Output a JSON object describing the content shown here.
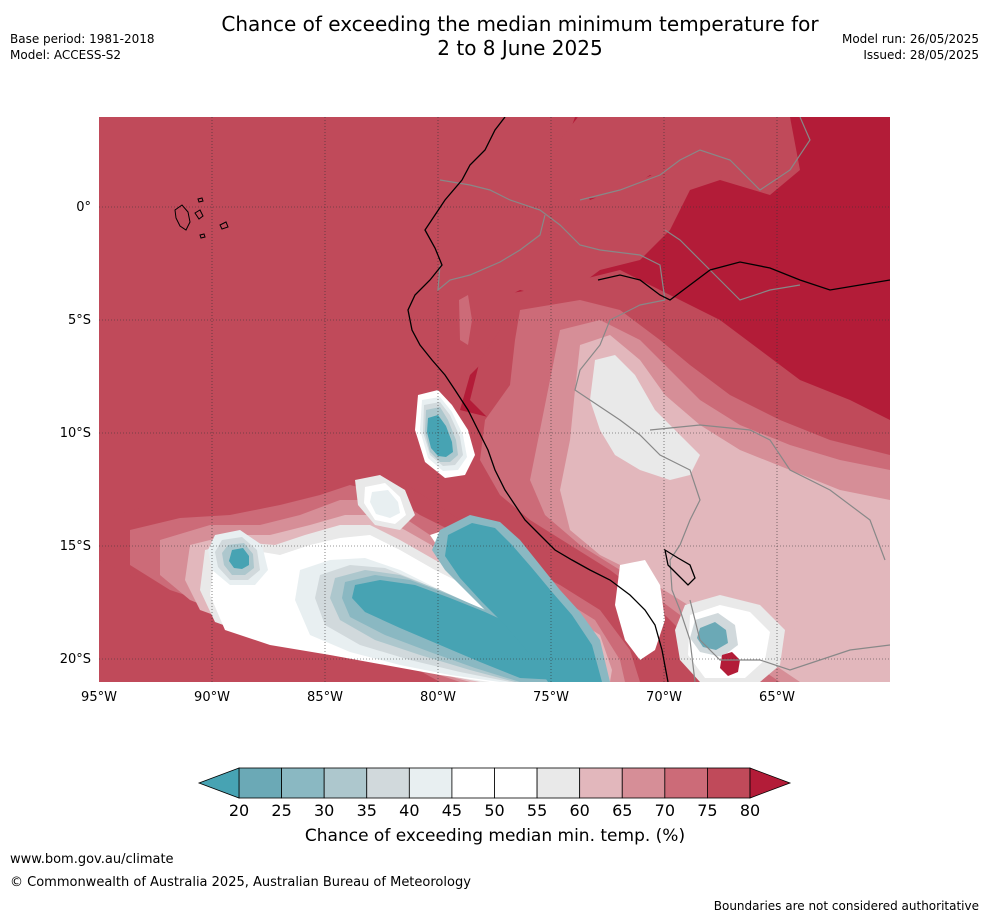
{
  "header": {
    "title_line1": "Chance of exceeding the median minimum temperature for",
    "title_line2": "2 to 8 June 2025",
    "base_period": "Base period: 1981-2018",
    "model": "Model: ACCESS-S2",
    "model_run": "Model run: 26/05/2025",
    "issued": "Issued: 28/05/2025"
  },
  "map": {
    "lon_range": [
      -95,
      -60
    ],
    "lat_range": [
      -21,
      4
    ],
    "lon_ticks": [
      "95°W",
      "90°W",
      "85°W",
      "80°W",
      "75°W",
      "70°W",
      "65°W"
    ],
    "lat_ticks": [
      "0°",
      "5°S",
      "10°S",
      "15°S",
      "20°S"
    ],
    "colors": {
      "p80": "#b31c38",
      "p75": "#c04a5a",
      "p70": "#cc6b78",
      "p65": "#d68e97",
      "p60": "#e2b7bc",
      "p55": "#e9e9e9",
      "p50": "#ffffff",
      "p45": "#e8eff1",
      "p40": "#d1d9dc",
      "p35": "#adc7cd",
      "p30": "#8ab8c2",
      "p25": "#6ba9b6",
      "p20": "#47a3b3"
    }
  },
  "colorbar": {
    "labels": [
      "20",
      "25",
      "30",
      "35",
      "40",
      "45",
      "50",
      "55",
      "60",
      "65",
      "70",
      "75",
      "80"
    ],
    "colors": [
      "#6ba9b6",
      "#8ab8c2",
      "#adc7cd",
      "#d1d9dc",
      "#e8eff1",
      "#ffffff",
      "#ffffff",
      "#e9e9e9",
      "#e2b7bc",
      "#d68e97",
      "#cc6b78",
      "#c04a5a"
    ],
    "low_color": "#47a3b3",
    "high_color": "#b31c38",
    "label": "Chance of exceeding median min. temp. (%)"
  },
  "footer": {
    "url": "www.bom.gov.au/climate",
    "copyright": "© Commonwealth of Australia 2025, Australian Bureau of Meteorology",
    "disclaimer": "Boundaries are not considered authoritative"
  }
}
